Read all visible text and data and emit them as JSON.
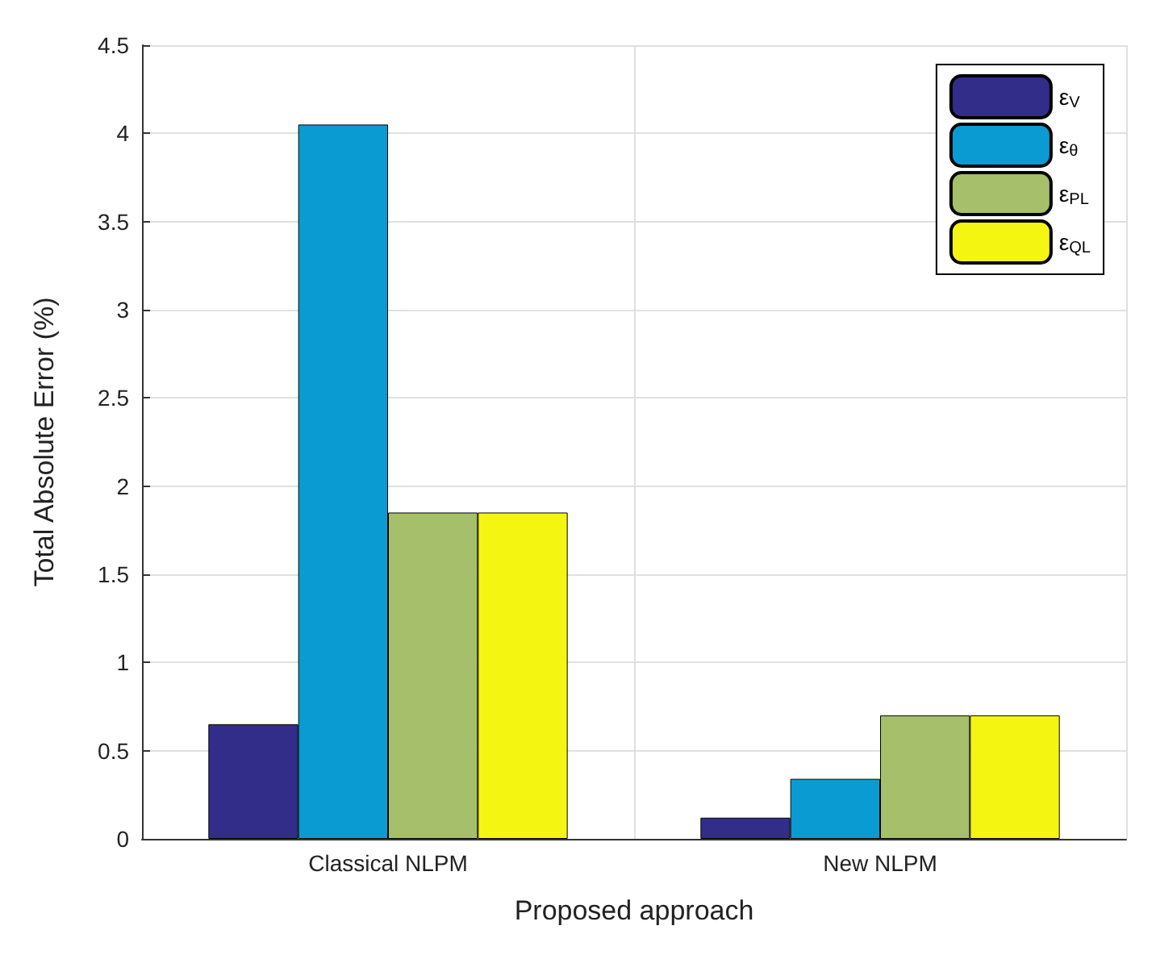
{
  "chart_data": {
    "type": "bar",
    "xlabel": "Proposed approach",
    "ylabel": "Total Absolute Error (%)",
    "categories": [
      "Classical NLPM",
      "New NLPM"
    ],
    "series": [
      {
        "name": "ε$_{V}$",
        "color": "#332d8a",
        "values": [
          0.65,
          0.12
        ]
      },
      {
        "name": "ε$_{θ}$",
        "color": "#0a9bd2",
        "values": [
          4.05,
          0.34
        ]
      },
      {
        "name": "ε$_{PL}$",
        "color": "#a5bf6a",
        "values": [
          1.85,
          0.7
        ]
      },
      {
        "name": "ε$_{QL}$",
        "color": "#f5f512",
        "values": [
          1.85,
          0.7
        ]
      }
    ],
    "ylim": [
      0,
      4.5
    ],
    "yticks": [
      0,
      0.5,
      1,
      1.5,
      2,
      2.5,
      3,
      3.5,
      4,
      4.5
    ],
    "grid": true,
    "legend": "top right"
  }
}
